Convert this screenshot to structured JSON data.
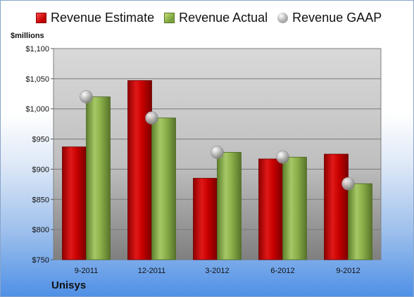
{
  "legend": {
    "estimate": "Revenue Estimate",
    "actual": "Revenue Actual",
    "gaap": "Revenue GAAP"
  },
  "units_label": "$millions",
  "company": "Unisys",
  "colors": {
    "estimate": "#c00000",
    "actual": "#8cb04a",
    "gaap": "#a6a6a6",
    "plot_top": "#d9d9d9",
    "plot_bottom": "#7f7f7f"
  },
  "chart_data": {
    "type": "bar",
    "title": "",
    "xlabel": "",
    "ylabel": "$millions",
    "categories": [
      "9-2011",
      "12-2011",
      "3-2012",
      "6-2012",
      "9-2012"
    ],
    "ylim": [
      750,
      1100
    ],
    "yticks": [
      750,
      800,
      850,
      900,
      950,
      1000,
      1050,
      1100
    ],
    "ytick_labels": [
      "$750",
      "$800",
      "$850",
      "$900",
      "$950",
      "$1,000",
      "$1,050",
      "$1,100"
    ],
    "grid": true,
    "legend_position": "top",
    "series": [
      {
        "name": "Revenue Estimate",
        "kind": "bar",
        "values": [
          937,
          1047,
          885,
          917,
          925
        ]
      },
      {
        "name": "Revenue Actual",
        "kind": "bar",
        "values": [
          1020,
          985,
          928,
          920,
          876
        ]
      },
      {
        "name": "Revenue GAAP",
        "kind": "marker",
        "values": [
          1020,
          985,
          928,
          920,
          876
        ]
      }
    ]
  }
}
